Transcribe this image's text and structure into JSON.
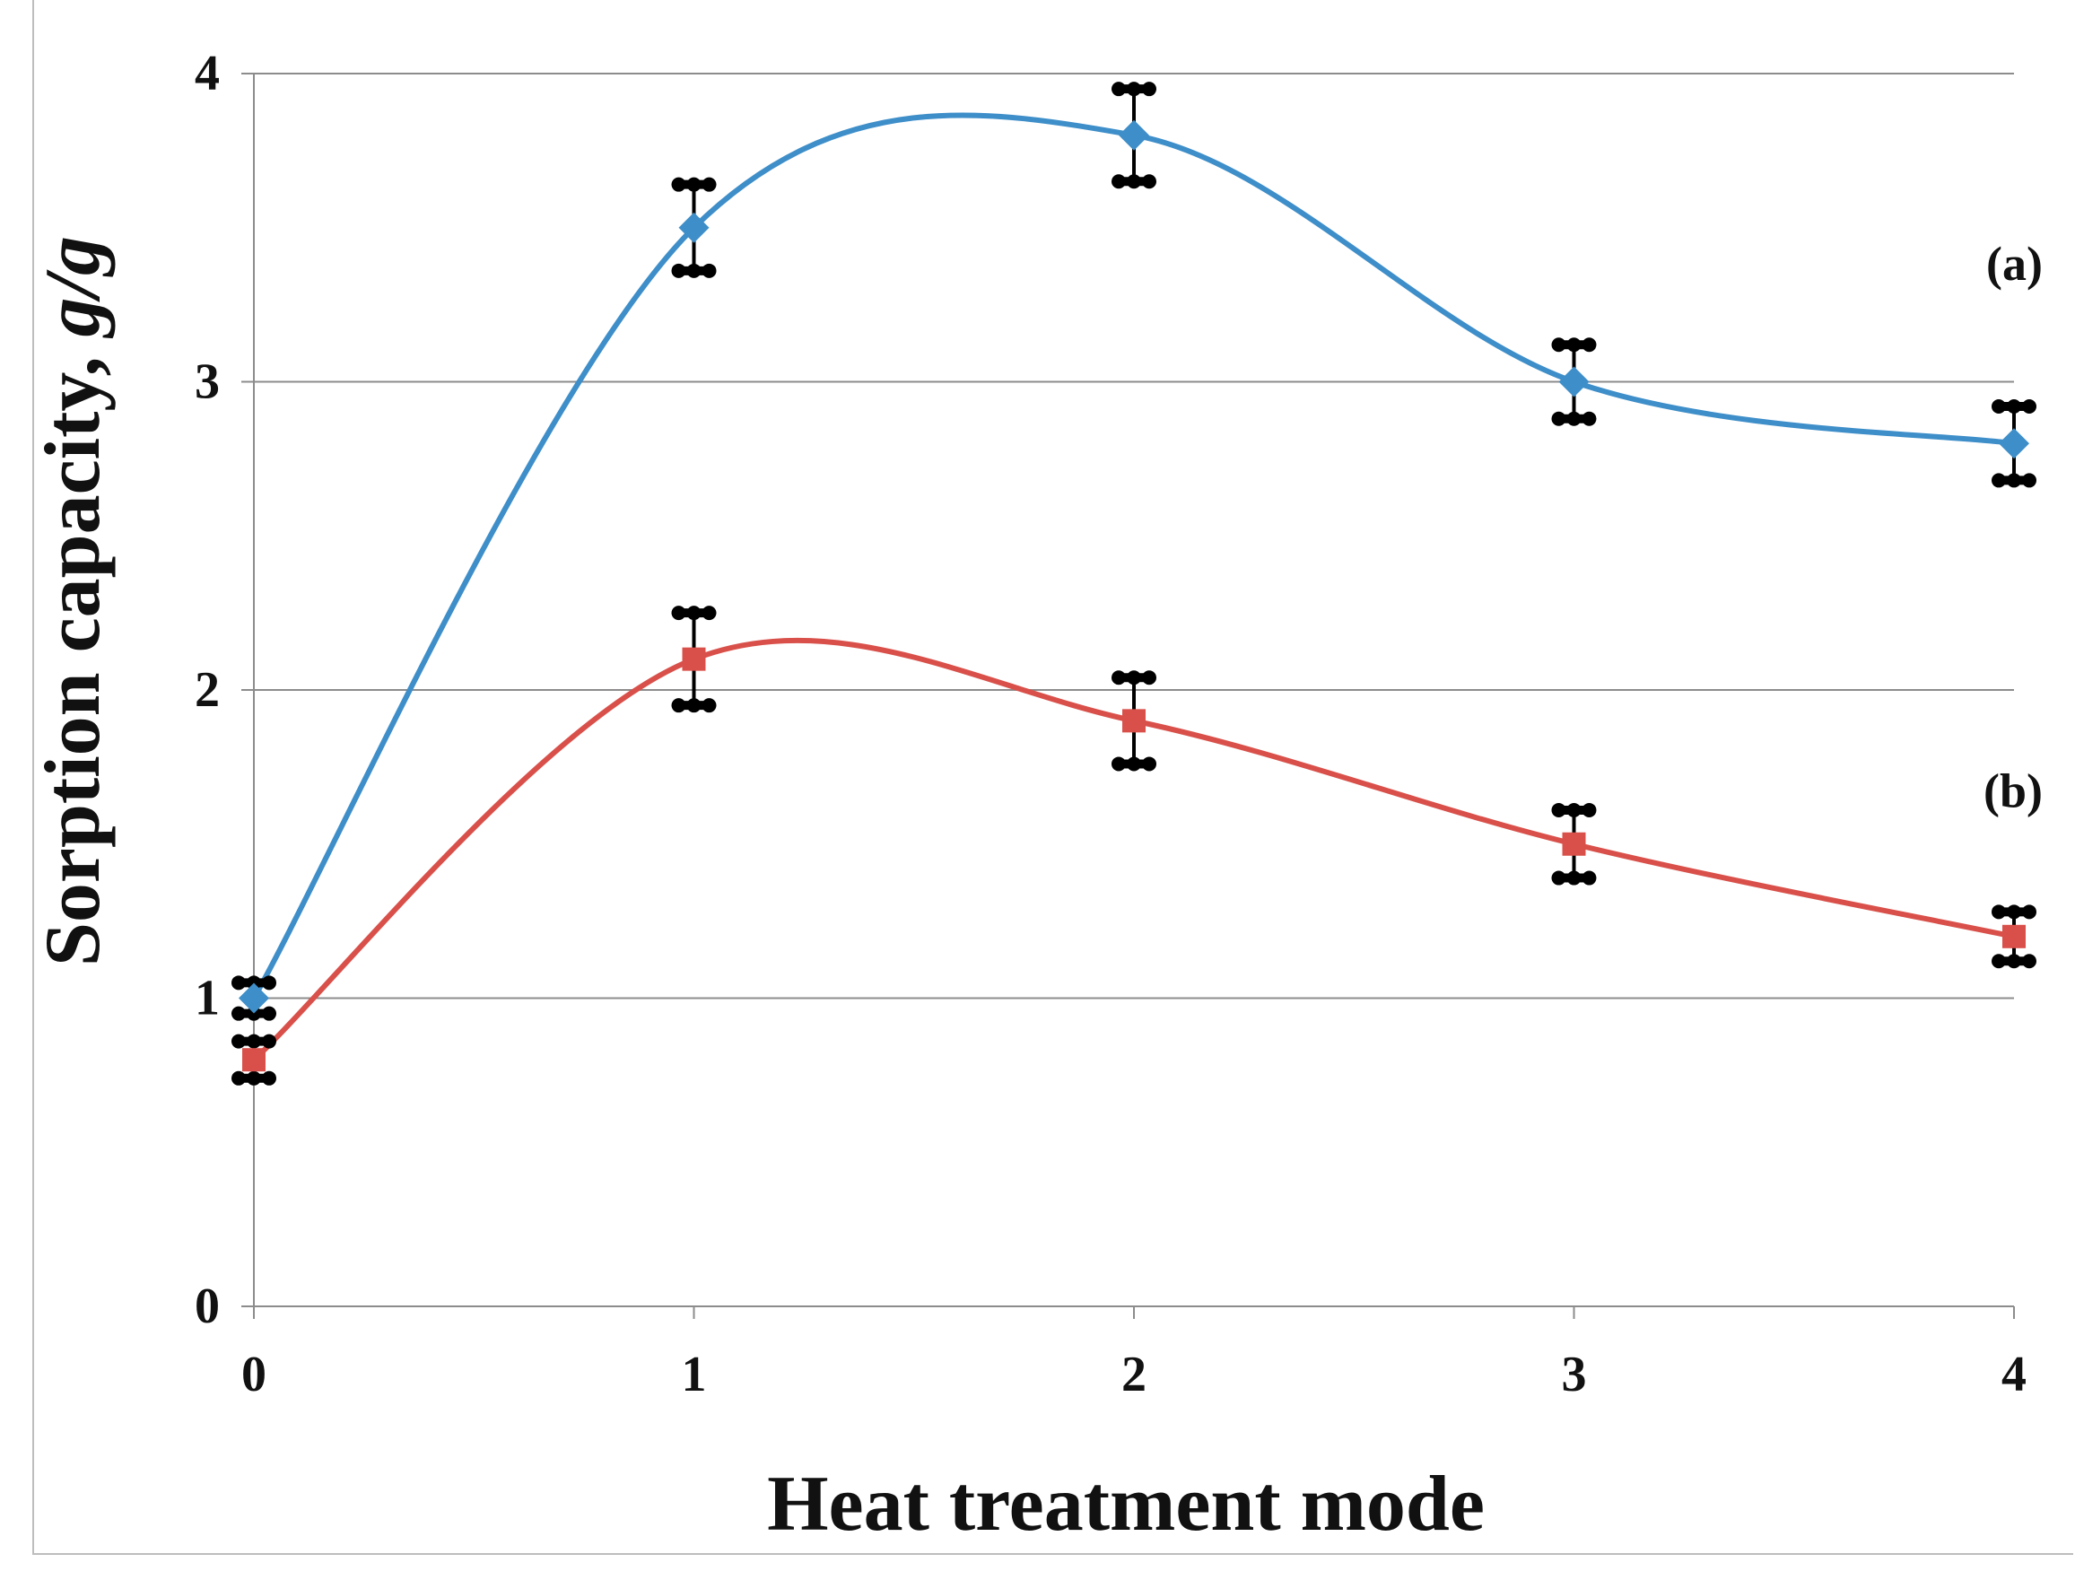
{
  "chart_data": {
    "type": "line",
    "title": "",
    "xlabel": "Heat treatment mode",
    "ylabel_main": "Sorption capacity, ",
    "ylabel_units": "g/g",
    "x": [
      0,
      1,
      2,
      3,
      4
    ],
    "x_tick_labels": [
      "0",
      "1",
      "2",
      "3",
      "4"
    ],
    "y_tick_values": [
      0,
      1,
      2,
      3,
      4
    ],
    "y_tick_labels": [
      "0",
      "1",
      "2",
      "3",
      "4"
    ],
    "xlim": [
      0,
      4
    ],
    "ylim": [
      0,
      4
    ],
    "grid": "horizontal",
    "smoothed": true,
    "series": [
      {
        "name": "(a)",
        "label": "(a)",
        "label_position": [
          4,
          3.33
        ],
        "color": "#3e8ec9",
        "marker": "diamond",
        "values": [
          1.0,
          3.5,
          3.8,
          3.0,
          2.8
        ],
        "error": [
          0.05,
          0.14,
          0.15,
          0.12,
          0.12
        ]
      },
      {
        "name": "(b)",
        "label": "(b)",
        "label_position": [
          4,
          1.62
        ],
        "color": "#d9504a",
        "marker": "square",
        "values": [
          0.8,
          2.1,
          1.9,
          1.5,
          1.2
        ],
        "error": [
          0.06,
          0.15,
          0.14,
          0.11,
          0.08
        ]
      }
    ]
  }
}
